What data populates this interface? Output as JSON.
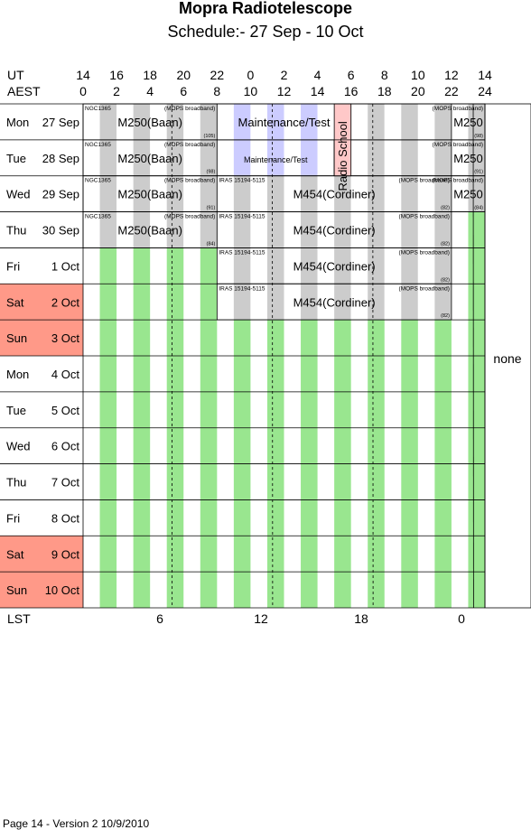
{
  "title": "Mopra Radiotelescope",
  "subtitle": "Schedule:- 27 Sep - 10 Oct",
  "ut_label": "UT",
  "aest_label": "AEST",
  "lst_label": "LST",
  "ut_ticks": [
    "14",
    "16",
    "18",
    "20",
    "22",
    "0",
    "2",
    "4",
    "6",
    "8",
    "10",
    "12",
    "14"
  ],
  "aest_ticks": [
    "0",
    "2",
    "4",
    "6",
    "8",
    "10",
    "12",
    "14",
    "16",
    "18",
    "20",
    "22",
    "24"
  ],
  "lst_ticks": [
    "6",
    "12",
    "18",
    "0"
  ],
  "days": [
    {
      "dow": "Mon",
      "date": "27 Sep",
      "weekend": false
    },
    {
      "dow": "Tue",
      "date": "28 Sep",
      "weekend": false
    },
    {
      "dow": "Wed",
      "date": "29 Sep",
      "weekend": false
    },
    {
      "dow": "Thu",
      "date": "30 Sep",
      "weekend": false
    },
    {
      "dow": "Fri",
      "date": "1  Oct",
      "weekend": false
    },
    {
      "dow": "Sat",
      "date": "2  Oct",
      "weekend": true
    },
    {
      "dow": "Sun",
      "date": "3  Oct",
      "weekend": true
    },
    {
      "dow": "Mon",
      "date": "4  Oct",
      "weekend": false
    },
    {
      "dow": "Tue",
      "date": "5  Oct",
      "weekend": false
    },
    {
      "dow": "Wed",
      "date": "6  Oct",
      "weekend": false
    },
    {
      "dow": "Thu",
      "date": "7  Oct",
      "weekend": false
    },
    {
      "dow": "Fri",
      "date": "8  Oct",
      "weekend": false
    },
    {
      "dow": "Sat",
      "date": "9  Oct",
      "weekend": true
    },
    {
      "dow": "Sun",
      "date": "10 Oct",
      "weekend": true
    }
  ],
  "none_label": "none",
  "footer": "Page 14 - Version 2  10/9/2010",
  "colors": {
    "green": "#99e68f",
    "grey": "#cccccc",
    "lavender": "#ccccff",
    "pink": "#ffc8c8",
    "weekend": "#ff9988"
  },
  "blocks": [
    {
      "day": 0,
      "start": 0,
      "end": 8,
      "label": "M250(Baan)",
      "tl": "NGC1365",
      "tr": "(MOPS broadband)",
      "br": "(105)",
      "fill": "pattern"
    },
    {
      "day": 0,
      "start": 8,
      "end": 16,
      "label": "Maintenance/Test",
      "fill": "lavender"
    },
    {
      "day": 0,
      "start": 16,
      "end": 22,
      "label": "",
      "fill": "pattern"
    },
    {
      "day": 0,
      "start": 22,
      "end": 24,
      "label": "M250",
      "tr": "(MOPS broadband)",
      "br": "(98)",
      "fill": "pattern"
    },
    {
      "day": 1,
      "start": 0,
      "end": 8,
      "label": "M250(Baan)",
      "tl": "NGC1365",
      "tr": "(MOPS broadband)",
      "br": "(98)",
      "fill": "pattern"
    },
    {
      "day": 1,
      "start": 8,
      "end": 15,
      "label": "Maintenance/Test",
      "small": true,
      "fill": "lavender"
    },
    {
      "day": 1,
      "start": 15,
      "end": 22,
      "label": "",
      "fill": "pattern"
    },
    {
      "day": 1,
      "start": 22,
      "end": 24,
      "label": "M250",
      "tr": "(MOPS broadband)",
      "br": "(91)",
      "fill": "pattern"
    },
    {
      "day": 2,
      "start": 0,
      "end": 8,
      "label": "M250(Baan)",
      "tl": "NGC1365",
      "tr": "(MOPS broadband)",
      "br": "(91)",
      "fill": "pattern"
    },
    {
      "day": 2,
      "start": 8,
      "end": 22,
      "label": "M454(Cordiner)",
      "tl": "IRAS 15194-5115",
      "tr": "(MOPS broadband)",
      "br": "(82)",
      "fill": "pattern"
    },
    {
      "day": 2,
      "start": 22,
      "end": 24,
      "label": "M250",
      "tr": "(MOPS broadband)",
      "br": "(84)",
      "fill": "pattern"
    },
    {
      "day": 3,
      "start": 0,
      "end": 8,
      "label": "M250(Baan)",
      "tl": "NGC1365",
      "tr": "(MOPS broadband)",
      "br": "(84)",
      "fill": "pattern"
    },
    {
      "day": 3,
      "start": 8,
      "end": 22,
      "label": "M454(Cordiner)",
      "tl": "IRAS 15194-5115",
      "tr": "(MOPS broadband)",
      "br": "(82)",
      "fill": "pattern"
    },
    {
      "day": 4,
      "start": 8,
      "end": 22,
      "label": "M454(Cordiner)",
      "tl": "IRAS 15194-5115",
      "tr": "(MOPS broadband)",
      "br": "(82)",
      "fill": "pattern"
    },
    {
      "day": 5,
      "start": 8,
      "end": 22,
      "label": "M454(Cordiner)",
      "tl": "IRAS 15194-5115",
      "tr": "(MOPS broadband)",
      "br": "(82)",
      "fill": "pattern"
    }
  ],
  "radio_school": {
    "label": "Radio School",
    "start_day": 0,
    "end_day": 1,
    "start_hour": 15,
    "end_hour": 16
  }
}
